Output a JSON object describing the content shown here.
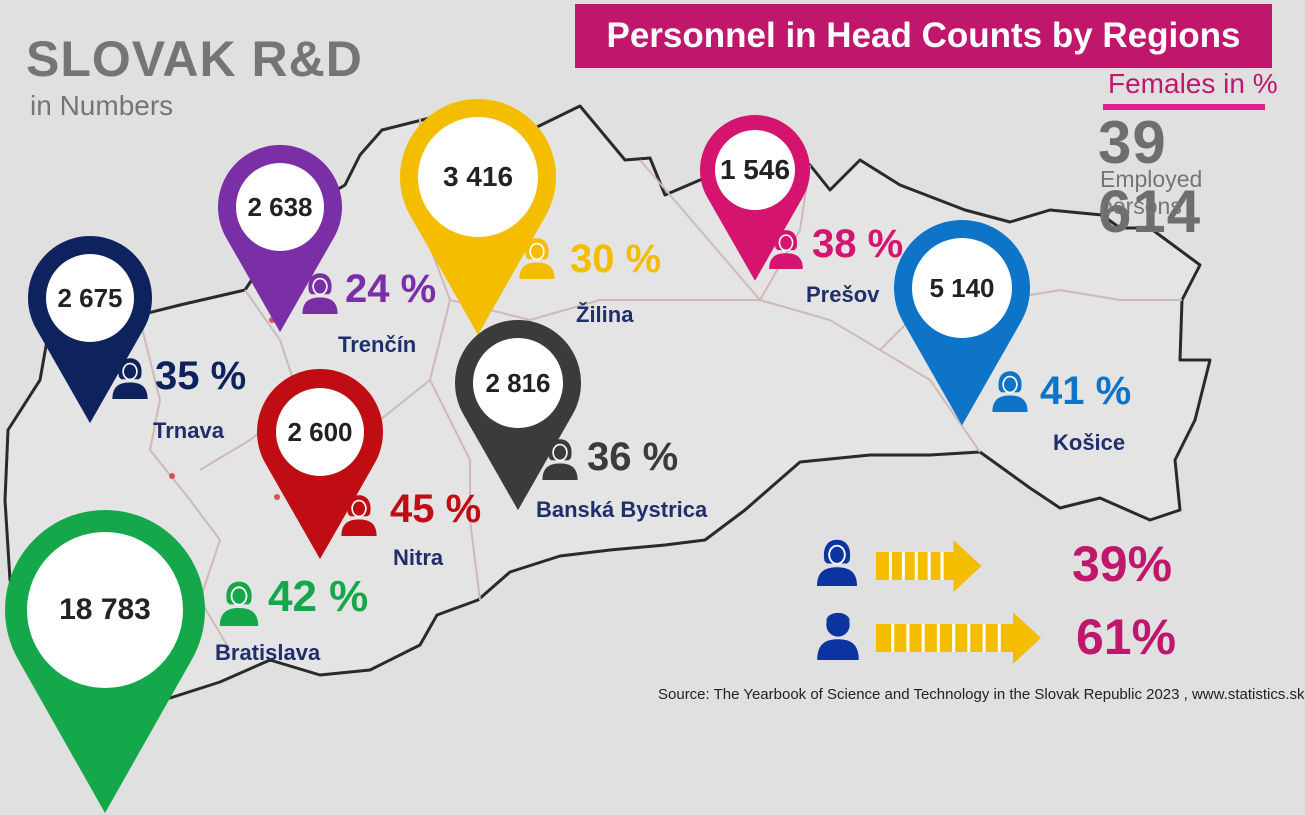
{
  "brand": {
    "title": "SLOVAK R&D",
    "subtitle": "in Numbers"
  },
  "header": {
    "title": "Personnel in Head Counts by Regions"
  },
  "legend": {
    "females_label": "Females in %"
  },
  "total": {
    "value": "39 614",
    "label": "Employed persons"
  },
  "regions": [
    {
      "name": "Bratislava",
      "count": "18 783",
      "female_pct": "42 %",
      "color": "#14a84a"
    },
    {
      "name": "Trnava",
      "count": "2 675",
      "female_pct": "35 %",
      "color": "#0e235e"
    },
    {
      "name": "Trenčín",
      "count": "2 638",
      "female_pct": "24 %",
      "color": "#7a2fa6"
    },
    {
      "name": "Nitra",
      "count": "2 600",
      "female_pct": "45 %",
      "color": "#c00d14"
    },
    {
      "name": "Žilina",
      "count": "3 416",
      "female_pct": "30 %",
      "color": "#f5bd00"
    },
    {
      "name": "Banská Bystrica",
      "count": "2 816",
      "female_pct": "36 %",
      "color": "#3b3b3b"
    },
    {
      "name": "Prešov",
      "count": "1 546",
      "female_pct": "38 %",
      "color": "#d4146e"
    },
    {
      "name": "Košice",
      "count": "5 140",
      "female_pct": "41 %",
      "color": "#0e74c8"
    }
  ],
  "gender_split": {
    "female_pct": "39%",
    "male_pct": "61%",
    "female_share": 39,
    "male_share": 61,
    "person_color": "#0b34a0",
    "arrow_color": "#f5bd00"
  },
  "source": "Source: The Yearbook of Science and Technology in the Slovak Republic 2023 , www.statistics.sk",
  "icons": {
    "female": "female-person-icon",
    "male": "male-person-icon",
    "pin": "map-pin-icon"
  }
}
